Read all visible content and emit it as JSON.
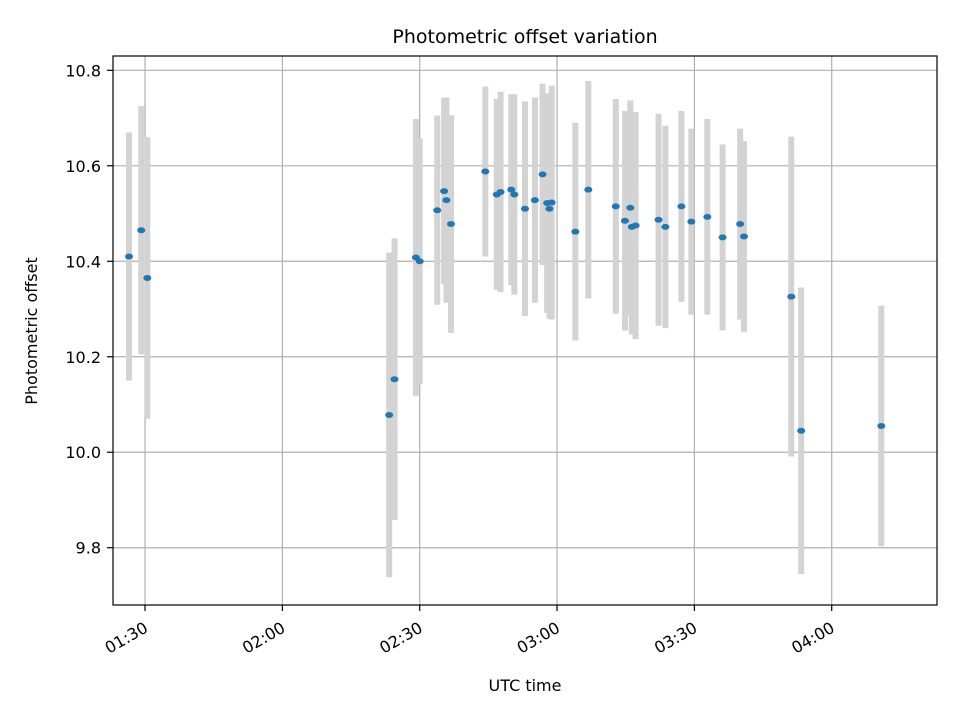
{
  "chart_data": {
    "type": "scatter",
    "title": "Photometric offset variation",
    "xlabel": "UTC time",
    "ylabel": "Photometric offset",
    "x_unit": "UTC HH:MM",
    "xlim": [
      "01:23",
      "04:23"
    ],
    "ylim": [
      9.68,
      10.83
    ],
    "x_ticks": [
      "01:30",
      "02:00",
      "02:30",
      "03:00",
      "03:30",
      "04:00"
    ],
    "y_ticks": [
      9.8,
      10.0,
      10.2,
      10.4,
      10.6,
      10.8
    ],
    "grid": true,
    "colors": {
      "points": "#1f77b4",
      "errorbars": "#d3d3d3",
      "grid": "#b0b0b0",
      "axes": "#000000"
    },
    "series": [
      {
        "points": [
          {
            "x": "01:26:30",
            "y": 10.41,
            "err": 0.26
          },
          {
            "x": "01:29:10",
            "y": 10.465,
            "err": 0.26
          },
          {
            "x": "01:30:30",
            "y": 10.365,
            "err": 0.295
          },
          {
            "x": "02:23:20",
            "y": 10.078,
            "err": 0.34
          },
          {
            "x": "02:24:30",
            "y": 10.153,
            "err": 0.295
          },
          {
            "x": "02:29:10",
            "y": 10.408,
            "err": 0.29
          },
          {
            "x": "02:30:00",
            "y": 10.4,
            "err": 0.258
          },
          {
            "x": "02:33:50",
            "y": 10.507,
            "err": 0.198
          },
          {
            "x": "02:35:20",
            "y": 10.547,
            "err": 0.195
          },
          {
            "x": "02:35:50",
            "y": 10.528,
            "err": 0.215
          },
          {
            "x": "02:36:50",
            "y": 10.478,
            "err": 0.228
          },
          {
            "x": "02:44:20",
            "y": 10.588,
            "err": 0.178
          },
          {
            "x": "02:46:50",
            "y": 10.54,
            "err": 0.2
          },
          {
            "x": "02:47:40",
            "y": 10.545,
            "err": 0.21
          },
          {
            "x": "02:50:00",
            "y": 10.55,
            "err": 0.2
          },
          {
            "x": "02:50:40",
            "y": 10.54,
            "err": 0.21
          },
          {
            "x": "02:53:00",
            "y": 10.51,
            "err": 0.225
          },
          {
            "x": "02:55:10",
            "y": 10.528,
            "err": 0.215
          },
          {
            "x": "02:56:50",
            "y": 10.582,
            "err": 0.19
          },
          {
            "x": "02:57:50",
            "y": 10.522,
            "err": 0.23
          },
          {
            "x": "02:58:20",
            "y": 10.51,
            "err": 0.23
          },
          {
            "x": "02:58:50",
            "y": 10.523,
            "err": 0.245
          },
          {
            "x": "03:04:00",
            "y": 10.462,
            "err": 0.228
          },
          {
            "x": "03:06:50",
            "y": 10.55,
            "err": 0.228
          },
          {
            "x": "03:12:50",
            "y": 10.515,
            "err": 0.225
          },
          {
            "x": "03:14:50",
            "y": 10.485,
            "err": 0.23
          },
          {
            "x": "03:16:00",
            "y": 10.512,
            "err": 0.225
          },
          {
            "x": "03:16:20",
            "y": 10.472,
            "err": 0.225
          },
          {
            "x": "03:17:10",
            "y": 10.475,
            "err": 0.238
          },
          {
            "x": "03:22:10",
            "y": 10.487,
            "err": 0.222
          },
          {
            "x": "03:23:40",
            "y": 10.472,
            "err": 0.212
          },
          {
            "x": "03:27:10",
            "y": 10.515,
            "err": 0.2
          },
          {
            "x": "03:29:20",
            "y": 10.483,
            "err": 0.195
          },
          {
            "x": "03:32:50",
            "y": 10.493,
            "err": 0.205
          },
          {
            "x": "03:36:10",
            "y": 10.45,
            "err": 0.195
          },
          {
            "x": "03:40:00",
            "y": 10.478,
            "err": 0.2
          },
          {
            "x": "03:40:50",
            "y": 10.452,
            "err": 0.2
          },
          {
            "x": "03:51:10",
            "y": 10.326,
            "err": 0.335
          },
          {
            "x": "03:53:20",
            "y": 10.045,
            "err": 0.3
          },
          {
            "x": "04:10:50",
            "y": 10.055,
            "err": 0.252
          }
        ]
      }
    ]
  }
}
